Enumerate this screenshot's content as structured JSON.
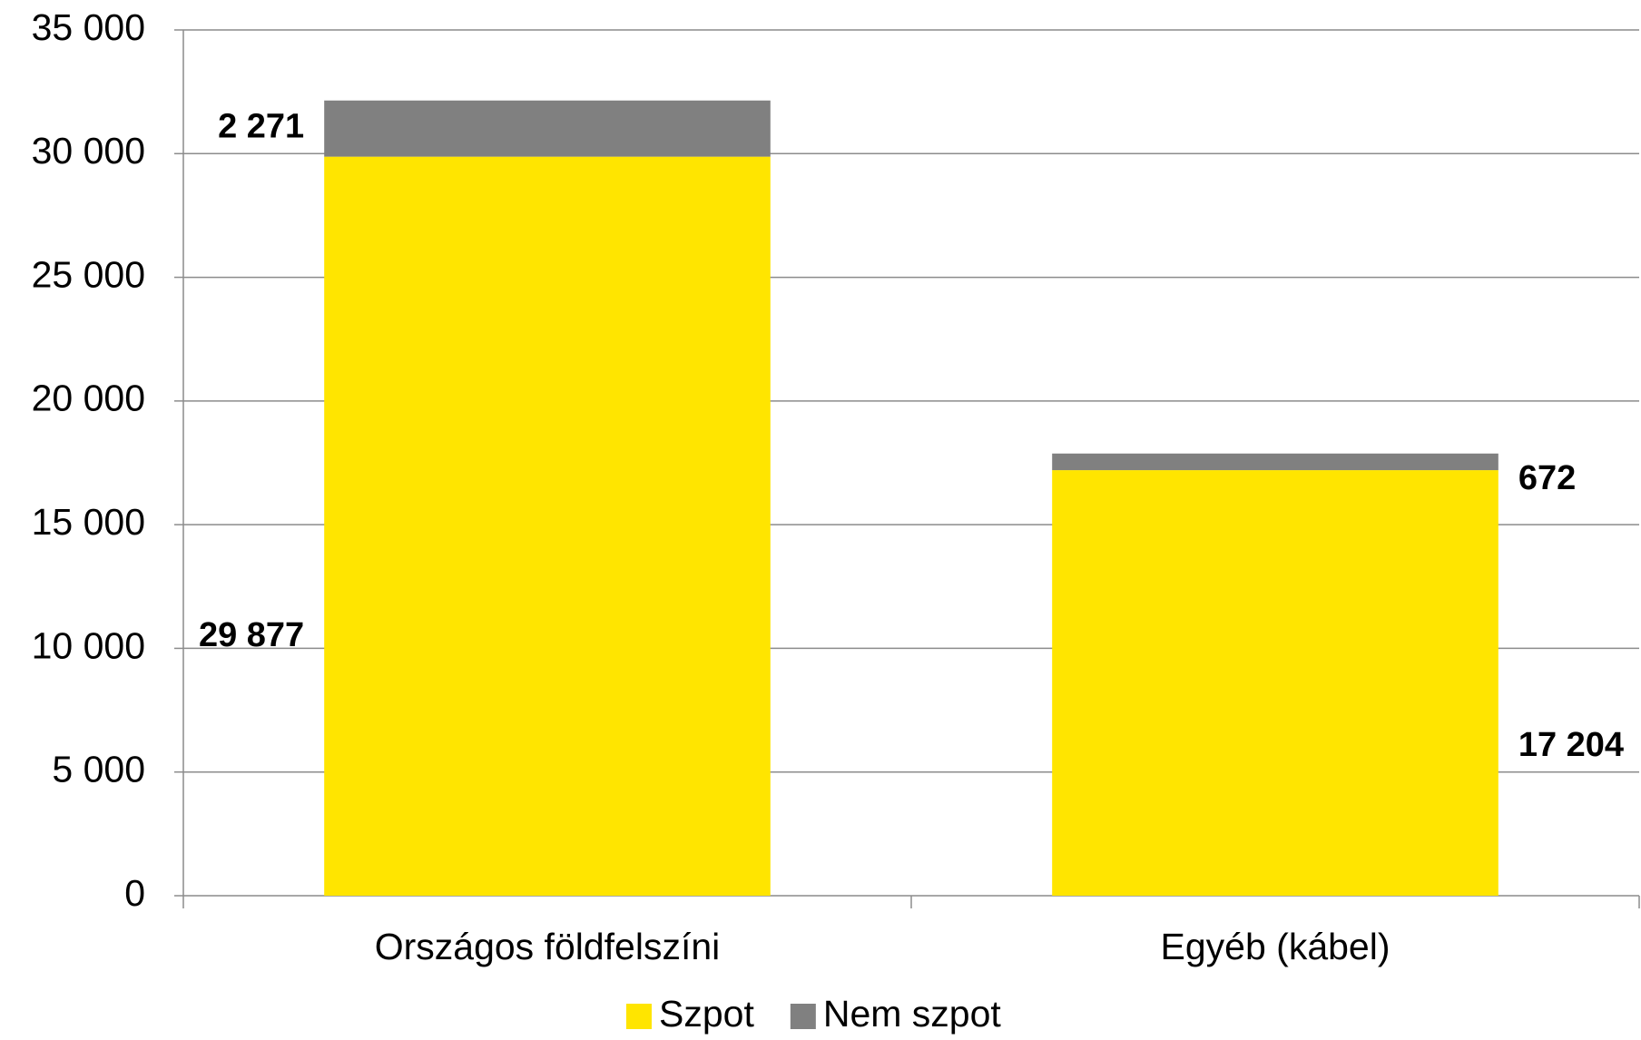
{
  "chart_data": {
    "type": "stacked_bar",
    "categories": [
      "Országos földfelszíni",
      "Egyéb (kábel)"
    ],
    "series": [
      {
        "name": "Szpot",
        "color": "#ffe500",
        "values": [
          29877,
          17204
        ],
        "value_labels": [
          "29 877",
          "17 204"
        ]
      },
      {
        "name": "Nem szpot",
        "color": "#808080",
        "values": [
          2271,
          672
        ],
        "value_labels": [
          "2 271",
          "672"
        ]
      }
    ],
    "ylim": [
      0,
      35000
    ],
    "yticks": [
      0,
      {
        "value": 5000,
        "label": "5 000"
      },
      {
        "value": 10000,
        "label": "10 000"
      },
      {
        "value": 15000,
        "label": "15 000"
      },
      {
        "value": 20000,
        "label": "20 000"
      },
      {
        "value": 25000,
        "label": "25 000"
      },
      {
        "value": 30000,
        "label": "30 000"
      },
      {
        "value": 35000,
        "label": "35 000"
      }
    ],
    "grid": true,
    "legend": "bottom"
  }
}
